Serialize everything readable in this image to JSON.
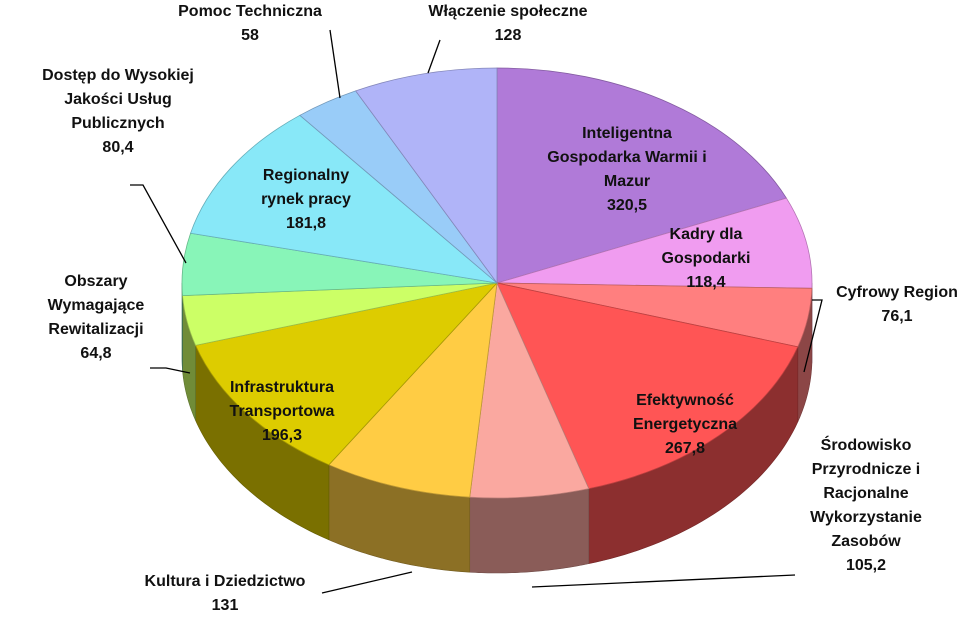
{
  "chart_data": {
    "type": "pie",
    "style": "3d",
    "start_angle_deg": 0,
    "direction": "clockwise",
    "slices": [
      {
        "label": "Inteligentna Gospodarka Warmii i Mazur",
        "lines": [
          "Inteligentna",
          "Gospodarka  Warmii i",
          "Mazur"
        ],
        "value": 320.5,
        "value_text": "320,5",
        "color": "#B07AD8",
        "label_inside": true
      },
      {
        "label": "Kadry dla Gospodarki",
        "lines": [
          "Kadry dla",
          "Gospodarki"
        ],
        "value": 118.4,
        "value_text": "118,4",
        "color": "#F09CF0",
        "label_inside": true
      },
      {
        "label": "Cyfrowy Region",
        "lines": [
          "Cyfrowy Region"
        ],
        "value": 76.1,
        "value_text": "76,1",
        "color": "#FF7F7F",
        "label_inside": false
      },
      {
        "label": "Efektywność Energetyczna",
        "lines": [
          "Efektywność",
          "Energetyczna"
        ],
        "value": 267.8,
        "value_text": "267,8",
        "color": "#FF5555",
        "label_inside": true
      },
      {
        "label": "Środowisko Przyrodnicze i Racjonalne Wykorzystanie Zasobów",
        "lines": [
          "Środowisko",
          "Przyrodnicze i",
          "Racjonalne",
          "Wykorzystanie",
          "Zasobów"
        ],
        "value": 105.2,
        "value_text": "105,2",
        "color": "#FAA8A0",
        "label_inside": false
      },
      {
        "label": "Kultura i Dziedzictwo",
        "lines": [
          "Kultura i Dziedzictwo"
        ],
        "value": 131,
        "value_text": "131",
        "color": "#FFCC44",
        "label_inside": false
      },
      {
        "label": "Infrastruktura Transportowa",
        "lines": [
          "Infrastruktura",
          "Transportowa"
        ],
        "value": 196.3,
        "value_text": "196,3",
        "color": "#DDCC00",
        "label_inside": true
      },
      {
        "label": "Obszary Wymagające Rewitalizacji",
        "lines": [
          "Obszary",
          "Wymagające",
          "Rewitalizacji"
        ],
        "value": 64.8,
        "value_text": "64,8",
        "color": "#CCFF66",
        "label_inside": false
      },
      {
        "label": "Dostęp do Wysokiej Jakości Usług Publicznych",
        "lines": [
          "Dostęp do Wysokiej",
          "Jakości Usług",
          "Publicznych"
        ],
        "value": 80.4,
        "value_text": "80,4",
        "color": "#88F5B8",
        "label_inside": false
      },
      {
        "label": "Regionalny rynek pracy",
        "lines": [
          "Regionalny",
          "rynek pracy"
        ],
        "value": 181.8,
        "value_text": "181,8",
        "color": "#88E8F8",
        "label_inside": true
      },
      {
        "label": "Pomoc Techniczna",
        "lines": [
          "Pomoc Techniczna"
        ],
        "value": 58,
        "value_text": "58",
        "color": "#99CCF8",
        "label_inside": false
      },
      {
        "label": "Włączenie społeczne",
        "lines": [
          "Włączenie społeczne"
        ],
        "value": 128,
        "value_text": "128",
        "color": "#B0B4F8",
        "label_inside": false
      }
    ]
  }
}
